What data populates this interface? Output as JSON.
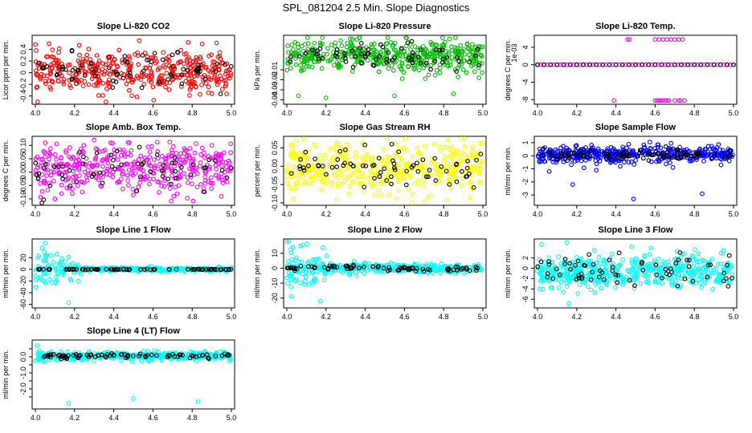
{
  "figure_title": "SPL_081204  2.5 Min. Slope Diagnostics",
  "chart_data": [
    {
      "type": "scatter",
      "title": "Slope Li-820 CO2",
      "ylabel": "Licor ppm per min.",
      "color": "#ff0000",
      "xlim": [
        4.0,
        5.0
      ],
      "ylim": [
        -0.5,
        0.6
      ],
      "xticks": [
        "4.0",
        "4.2",
        "4.4",
        "4.6",
        "4.8",
        "5.0"
      ],
      "yticks": [
        -0.4,
        -0.2,
        0.0,
        0.2,
        0.4
      ],
      "n_main": 400,
      "n_black": 70,
      "center": 0.02,
      "spread": 0.17,
      "black_spread": 0.15,
      "outliers": [
        [
          4.36,
          -0.5
        ],
        [
          4.53,
          0.55
        ],
        [
          4.78,
          0.52
        ],
        [
          4.07,
          0.5
        ]
      ]
    },
    {
      "type": "scatter",
      "title": "Slope Li-820 Pressure",
      "ylabel": "kPa per min.",
      "color": "#00bb00",
      "xlim": [
        4.0,
        5.0
      ],
      "ylim": [
        -0.042,
        0.022
      ],
      "xticks": [
        "4.0",
        "4.2",
        "4.4",
        "4.6",
        "4.8",
        "5.0"
      ],
      "yticks": [
        -0.04,
        -0.03,
        -0.02,
        -0.01
      ],
      "n_main": 450,
      "n_black": 70,
      "center": 0.004,
      "spread": 0.008,
      "black_spread": 0.006,
      "outliers": [
        [
          4.06,
          -0.036
        ],
        [
          4.2,
          -0.038
        ],
        [
          4.55,
          -0.036
        ],
        [
          4.85,
          -0.034
        ],
        [
          4.98,
          -0.018
        ],
        [
          4.47,
          -0.012
        ]
      ]
    },
    {
      "type": "scatter",
      "title": "Slope Li-820 Temp.",
      "ylabel": "degrees C per min.",
      "yscale_label": "1e-03",
      "color": "#ff00ff",
      "xlim": [
        4.0,
        5.0
      ],
      "ylim": [
        -0.0085,
        0.0062
      ],
      "xticks": [
        "4.0",
        "4.2",
        "4.4",
        "4.6",
        "4.8",
        "5.0"
      ],
      "yticks": [
        -0.008,
        -0.004,
        0.0,
        0.004
      ],
      "ytick_labels": [
        "-8",
        "-4",
        "0",
        "4"
      ],
      "n_main": 0,
      "n_black": 0,
      "line_y": 0.0,
      "line_n": 60,
      "upper_y": 0.0058,
      "upper_x": [
        4.46,
        4.47,
        4.6,
        4.62,
        4.64,
        4.66,
        4.68,
        4.7,
        4.72,
        4.74
      ],
      "lower_y": -0.0082,
      "lower_x": [
        4.39,
        4.6,
        4.61,
        4.62,
        4.63,
        4.64,
        4.65,
        4.66,
        4.67,
        4.7,
        4.72,
        4.73,
        4.75
      ],
      "outliers": []
    },
    {
      "type": "scatter",
      "title": "Slope Amb. Box Temp.",
      "ylabel": "degrees C per min.",
      "color": "#ff00ff",
      "xlim": [
        4.0,
        5.0
      ],
      "ylim": [
        -0.115,
        0.125
      ],
      "xticks": [
        "4.0",
        "4.2",
        "4.4",
        "4.6",
        "4.8",
        "5.0"
      ],
      "yticks": [
        -0.1,
        -0.05,
        0.0,
        0.05,
        0.1
      ],
      "ytick_labels": [
        "-0.10",
        "-0.05",
        "0.00",
        "0.05",
        "0.10"
      ],
      "n_main": 400,
      "n_black": 60,
      "center": 0.01,
      "spread": 0.045,
      "black_spread": 0.04,
      "outliers": [
        [
          4.05,
          0.11
        ],
        [
          4.3,
          0.12
        ],
        [
          4.48,
          0.11
        ],
        [
          4.1,
          -0.1
        ],
        [
          4.9,
          0.1
        ]
      ]
    },
    {
      "type": "scatter",
      "title": "Slope Gas Stream RH",
      "ylabel": "percent per min.",
      "color": "#ffff00",
      "xlim": [
        4.0,
        5.0
      ],
      "ylim": [
        -0.1,
        0.075
      ],
      "xticks": [
        "4.0",
        "4.2",
        "4.4",
        "4.6",
        "4.8",
        "5.0"
      ],
      "yticks": [
        -0.1,
        -0.05,
        0.0,
        0.05
      ],
      "ytick_labels": [
        "-0.10",
        "-0.05",
        "0.00",
        "0.05"
      ],
      "n_main": 450,
      "n_black": 70,
      "center": -0.005,
      "spread": 0.035,
      "black_spread": 0.03,
      "outliers": [
        [
          4.7,
          -0.097
        ],
        [
          4.82,
          -0.092
        ],
        [
          4.05,
          0.07
        ]
      ]
    },
    {
      "type": "scatter",
      "title": "Slope Sample Flow",
      "ylabel": "ml/min per min.",
      "color": "#0000ff",
      "xlim": [
        4.0,
        5.0
      ],
      "ylim": [
        -3.6,
        1.3
      ],
      "xticks": [
        "4.0",
        "4.2",
        "4.4",
        "4.6",
        "4.8",
        "5.0"
      ],
      "yticks": [
        -3,
        -2,
        -1,
        0,
        1
      ],
      "n_main": 450,
      "n_black": 80,
      "center": 0.1,
      "spread": 0.3,
      "black_spread": 0.25,
      "outliers": [
        [
          4.18,
          -2.2
        ],
        [
          4.49,
          -3.3
        ],
        [
          4.84,
          -2.9
        ],
        [
          4.06,
          -1.2
        ],
        [
          4.3,
          -1.1
        ]
      ]
    },
    {
      "type": "scatter",
      "title": "Slope Line 1 Flow",
      "ylabel": "ml/min per min.",
      "color": "#00ffff",
      "xlim": [
        4.0,
        5.0
      ],
      "ylim": [
        -62,
        48
      ],
      "xticks": [
        "4.0",
        "4.2",
        "4.4",
        "4.6",
        "4.8",
        "5.0"
      ],
      "yticks": [
        -60,
        -40,
        -20,
        0,
        20
      ],
      "n_main": 380,
      "n_black": 80,
      "center": 0,
      "spread": 1.6,
      "black_spread": 0.3,
      "black_line": true,
      "early_spread": [
        4.0,
        4.25,
        22
      ],
      "outliers": [
        [
          4.17,
          -57
        ],
        [
          4.05,
          45
        ],
        [
          4.22,
          -20
        ]
      ]
    },
    {
      "type": "scatter",
      "title": "Slope Line 2 Flow",
      "ylabel": "ml/min per min.",
      "color": "#00ffff",
      "xlim": [
        4.0,
        5.0
      ],
      "ylim": [
        -25,
        18
      ],
      "xticks": [
        "4.0",
        "4.2",
        "4.4",
        "4.6",
        "4.8",
        "5.0"
      ],
      "yticks": [
        -20,
        -10,
        0,
        10
      ],
      "n_main": 420,
      "n_black": 80,
      "center": 0,
      "spread": 1.5,
      "black_spread": 0.8,
      "black_wave": true,
      "early_spread": [
        4.0,
        4.25,
        9
      ],
      "outliers": [
        [
          4.17,
          -22
        ],
        [
          4.07,
          15
        ],
        [
          4.03,
          14
        ]
      ]
    },
    {
      "type": "scatter",
      "title": "Slope Line 3 Flow",
      "ylabel": "ml/min per min.",
      "color": "#00ffff",
      "xlim": [
        4.0,
        5.0
      ],
      "ylim": [
        -7.2,
        5.2
      ],
      "xticks": [
        "4.0",
        "4.2",
        "4.4",
        "4.6",
        "4.8",
        "5.0"
      ],
      "yticks": [
        -6,
        -4,
        -2,
        0,
        2
      ],
      "n_main": 520,
      "n_black": 70,
      "center": -0.6,
      "spread": 1.5,
      "black_spread": 1.6,
      "outliers": [
        [
          4.16,
          -6.8
        ],
        [
          4.15,
          5
        ],
        [
          4.02,
          4.6
        ]
      ]
    },
    {
      "type": "scatter",
      "title": "Slope Line 4 (LT) Flow",
      "ylabel": "ml/min per min.",
      "color": "#00ffff",
      "xlim": [
        4.0,
        5.0
      ],
      "ylim": [
        -3.1,
        0.9
      ],
      "xticks": [
        "4.0",
        "4.2",
        "4.4",
        "4.6",
        "4.8",
        "5.0"
      ],
      "yticks": [
        -2.5,
        -2.0,
        -1.5,
        -1.0,
        -0.5,
        0.0,
        0.5
      ],
      "ytick_labels": [
        "",
        "-2.0",
        "",
        "-1.0",
        "",
        "0.0",
        ""
      ],
      "n_main": 420,
      "n_black": 80,
      "center": 0.05,
      "spread": 0.12,
      "black_spread": 0.08,
      "outliers": [
        [
          4.17,
          -2.9
        ],
        [
          4.5,
          -2.6
        ],
        [
          4.83,
          -2.8
        ],
        [
          4.01,
          0.7
        ]
      ]
    }
  ]
}
